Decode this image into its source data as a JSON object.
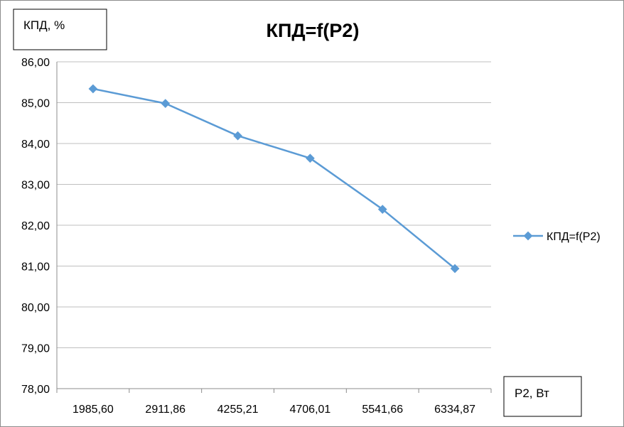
{
  "chart_data": {
    "type": "line",
    "title": "КПД=f(P2)",
    "ylabel": "КПД, %",
    "xlabel": "P2, Вт",
    "categories": [
      "1985,60",
      "2911,86",
      "4255,21",
      "4706,01",
      "5541,66",
      "6334,87"
    ],
    "series": [
      {
        "name": "КПД=f(P2)",
        "values": [
          85.34,
          84.98,
          84.19,
          83.64,
          82.39,
          80.94
        ],
        "color": "#5b9bd5"
      }
    ],
    "ylim": [
      78,
      86
    ],
    "yticks": [
      "78,00",
      "79,00",
      "80,00",
      "81,00",
      "82,00",
      "83,00",
      "84,00",
      "85,00",
      "86,00"
    ],
    "grid": true,
    "legend_position": "right"
  }
}
